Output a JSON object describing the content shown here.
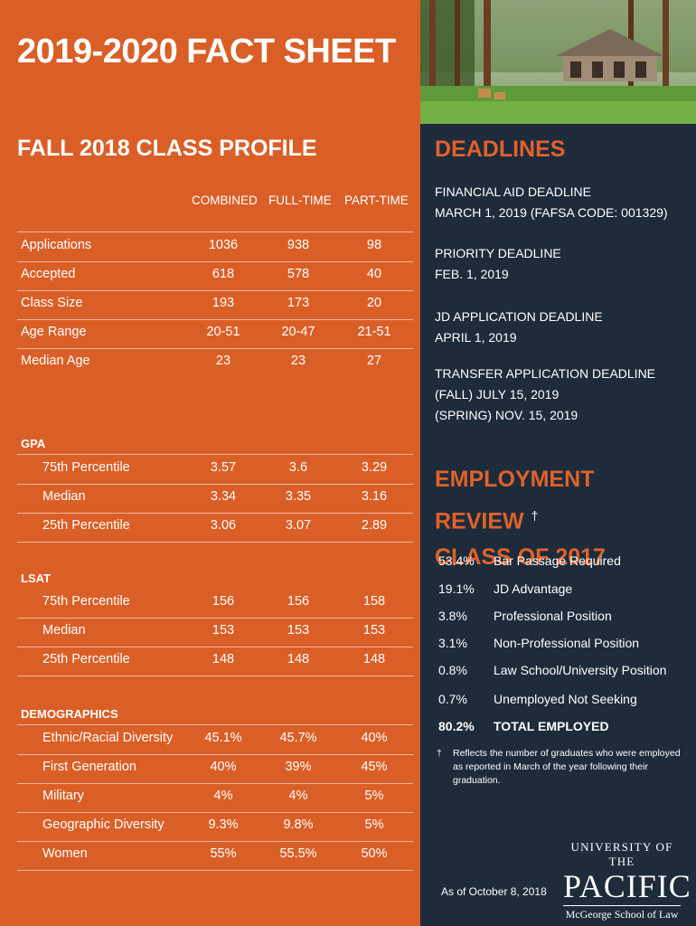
{
  "header": {
    "title": "2019-2020 FACT SHEET"
  },
  "profile": {
    "title": "FALL 2018 CLASS PROFILE",
    "columns": [
      "COMBINED",
      "FULL-TIME",
      "PART-TIME"
    ],
    "general": [
      {
        "label": "Applications",
        "values": [
          "1036",
          "938",
          "98"
        ]
      },
      {
        "label": "Accepted",
        "values": [
          "618",
          "578",
          "40"
        ]
      },
      {
        "label": "Class Size",
        "values": [
          "193",
          "173",
          "20"
        ]
      },
      {
        "label": "Age Range",
        "values": [
          "20-51",
          "20-47",
          "21-51"
        ]
      },
      {
        "label": "Median Age",
        "values": [
          "23",
          "23",
          "27"
        ]
      }
    ],
    "gpa_heading": "GPA",
    "gpa": [
      {
        "label": "75th Percentile",
        "values": [
          "3.57",
          "3.6",
          "3.29"
        ]
      },
      {
        "label": "Median",
        "values": [
          "3.34",
          "3.35",
          "3.16"
        ]
      },
      {
        "label": "25th Percentile",
        "values": [
          "3.06",
          "3.07",
          "2.89"
        ]
      }
    ],
    "lsat_heading": "LSAT",
    "lsat": [
      {
        "label": "75th Percentile",
        "values": [
          "156",
          "156",
          "158"
        ]
      },
      {
        "label": "Median",
        "values": [
          "153",
          "153",
          "153"
        ]
      },
      {
        "label": "25th Percentile",
        "values": [
          "148",
          "148",
          "148"
        ]
      }
    ],
    "demo_heading": "DEMOGRAPHICS",
    "demographics": [
      {
        "label": "Ethnic/Racial Diversity",
        "values": [
          "45.1%",
          "45.7%",
          "40%"
        ]
      },
      {
        "label": "First Generation",
        "values": [
          "40%",
          "39%",
          "45%"
        ]
      },
      {
        "label": "Military",
        "values": [
          "4%",
          "4%",
          "5%"
        ]
      },
      {
        "label": "Geographic Diversity",
        "values": [
          "9.3%",
          "9.8%",
          "5%"
        ]
      },
      {
        "label": "Women",
        "values": [
          "55%",
          "55.5%",
          "50%"
        ]
      }
    ]
  },
  "deadlines": {
    "title": "DEADLINES",
    "items": [
      {
        "lines": [
          "FINANCIAL AID DEADLINE",
          "MARCH 1, 2019 (FAFSA CODE: 001329)"
        ]
      },
      {
        "lines": [
          "PRIORITY DEADLINE",
          "FEB. 1, 2019"
        ]
      },
      {
        "lines": [
          "JD APPLICATION DEADLINE",
          "APRIL 1, 2019"
        ]
      },
      {
        "lines": [
          "TRANSFER  APPLICATION DEADLINE",
          "(FALL) JULY 15, 2019",
          "(SPRING) NOV. 15, 2019"
        ]
      }
    ]
  },
  "employment": {
    "title_line1": "EMPLOYMENT REVIEW",
    "dagger": "†",
    "title_line2": "CLASS OF 2017",
    "rows": [
      {
        "pct": "53.4%",
        "label": "Bar Passage Required"
      },
      {
        "pct": "19.1%",
        "label": "JD Advantage"
      },
      {
        "pct": "3.8%",
        "label": "Professional Position"
      },
      {
        "pct": "3.1%",
        "label": "Non-Professional Position"
      },
      {
        "pct": "0.8%",
        "label": "Law School/University Position"
      },
      {
        "pct": "0.7%",
        "label": "Unemployed Not Seeking"
      }
    ],
    "total": {
      "pct": "80.2%",
      "label": "TOTAL EMPLOYED"
    },
    "note_mark": "†",
    "note": "Reflects the number of graduates who were employed as reported in March of the year following their graduation."
  },
  "footer": {
    "as_of": "As of October 8, 2018"
  },
  "logo": {
    "line1": "UNIVERSITY OF THE",
    "line2": "PACIFIC",
    "line3": "McGeorge School of Law"
  }
}
